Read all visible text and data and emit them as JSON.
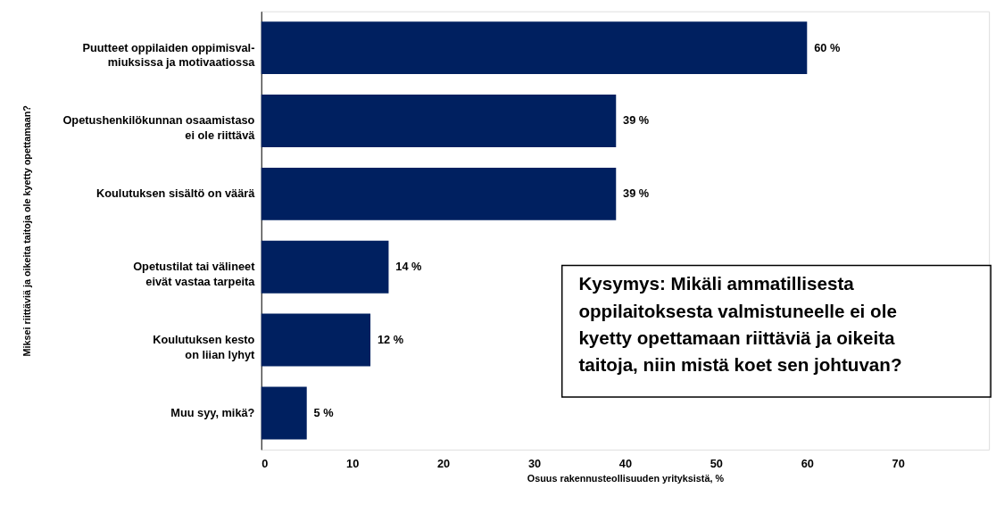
{
  "chart_data": {
    "type": "bar",
    "orientation": "horizontal",
    "categories": [
      "Puutteet oppilaiden oppimisval-\nmiuksissa ja motivaatiossa",
      "Opetushenkilökunnan osaamistaso\nei ole riittävä",
      "Koulutuksen sisältö on väärä",
      "Opetustilat tai välineet\neivät vastaa tarpeita",
      "Koulutuksen kesto\non liian lyhyt",
      "Muu syy, mikä?"
    ],
    "values": [
      60,
      39,
      39,
      14,
      12,
      5
    ],
    "value_labels": [
      "60 %",
      "39 %",
      "39 %",
      "14 %",
      "12 %",
      "5 %"
    ],
    "color": "#002060",
    "xlim": [
      0,
      80
    ],
    "xticks": [
      0,
      10,
      20,
      30,
      40,
      50,
      60,
      70
    ],
    "xlabel": "Osuus rakennusteollisuuden yrityksistä, %",
    "ylabel": "Miksei riittäviä ja oikeita taitoja ole kyetty opettamaan?",
    "grid": false,
    "annotations": [
      "Kysymys: Mikäli ammatillisesta\noppilaitoksesta valmistuneelle ei ole\nkyetty opettamaan riittäviä ja oikeita\ntaitoja, niin mistä koet sen johtuvan?"
    ]
  }
}
